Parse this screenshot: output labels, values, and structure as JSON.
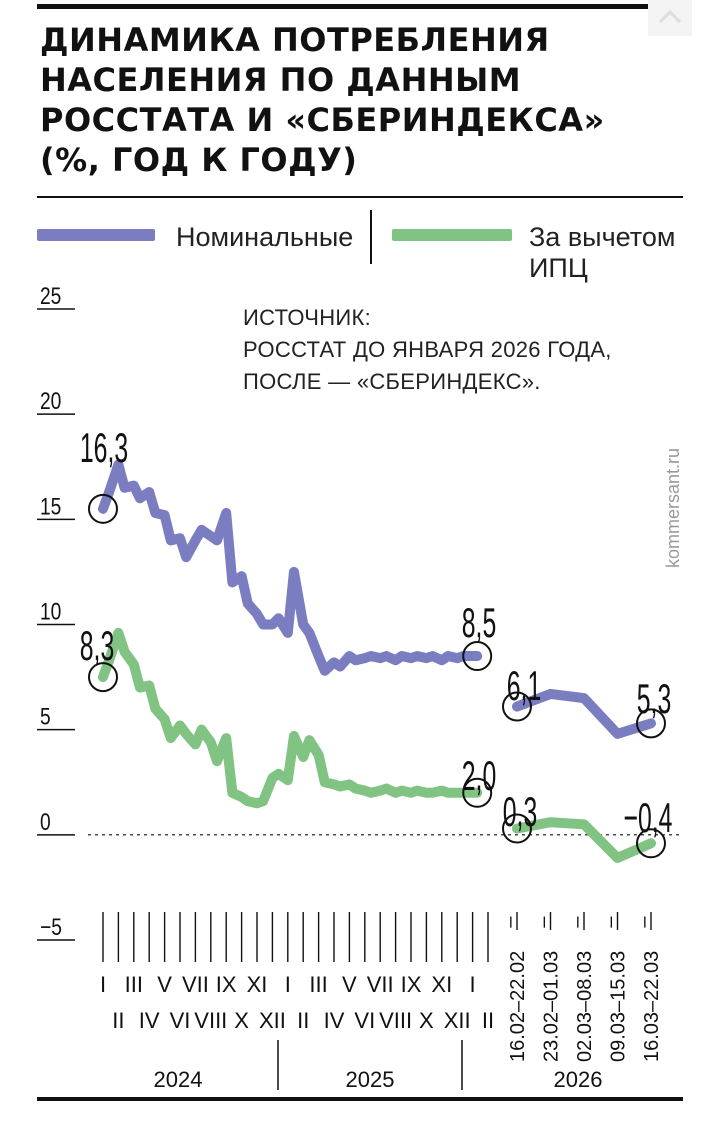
{
  "header": {
    "title_lines": [
      "ДИНАМИКА ПОТРЕБЛЕНИЯ",
      "НАСЕЛЕНИЯ ПО ДАННЫМ",
      "РОССТАТА И «СБЕРИНДЕКСА»",
      "(%, ГОД К ГОДУ)"
    ]
  },
  "legend": {
    "nominal": "Номинальные",
    "real_line1": "За вычетом",
    "real_line2": "ИПЦ"
  },
  "source": {
    "line1": "ИСТОЧНИК:",
    "line2": "РОССТАТ ДО ЯНВАРЯ 2026 ГОДА,",
    "line3": "ПОСЛЕ — «СБЕРИНДЕКС»."
  },
  "watermark": "kommersant.ru",
  "colors": {
    "nominal": "#7a7dbf",
    "real": "#80c383",
    "text": "#111111",
    "watermark": "#9a9a9a"
  },
  "chart_data": {
    "type": "line",
    "title": "ДИНАМИКА ПОТРЕБЛЕНИЯ НАСЕЛЕНИЯ ПО ДАННЫМ РОССТАТА И «СБЕРИНДЕКСА» (%, ГОД К ГОДУ)",
    "ylabel": "%, год к году",
    "ylim": [
      -5,
      25
    ],
    "yticks": [
      "25",
      "20",
      "15",
      "10",
      "5",
      "0",
      "−5"
    ],
    "monthly_ticks_top": [
      "I",
      "III",
      "V",
      "VII",
      "IX",
      "XI",
      "I",
      "III",
      "V",
      "VII",
      "IX",
      "XI",
      "I"
    ],
    "monthly_ticks_bottom": [
      "II",
      "IV",
      "VI",
      "VIII",
      "X",
      "XII",
      "II",
      "IV",
      "VI",
      "VIII",
      "X",
      "XII",
      "II"
    ],
    "years": [
      "2024",
      "2025",
      "2026"
    ],
    "weekly_labels": [
      "16.02–22.02",
      "23.02–01.03",
      "02.03–08.03",
      "09.03–15.03",
      "16.03–22.03"
    ],
    "monthly_series": [
      {
        "name": "Номинальные",
        "x": [
          0,
          0.4,
          1,
          1.4,
          2,
          2.4,
          3,
          3.4,
          4,
          4.4,
          5,
          5.4,
          6,
          6.4,
          7,
          7.4,
          8,
          8.4,
          9,
          9.4,
          10,
          10.4,
          11,
          11.4,
          12,
          12.4,
          13,
          13.4,
          14,
          14.4,
          15,
          15.4,
          16,
          16.4,
          17,
          17.4,
          18,
          18.4,
          19,
          19.4,
          20,
          20.4,
          21,
          21.4,
          22,
          22.4,
          23,
          23.4,
          24,
          24.3
        ],
        "values": [
          15.5,
          16.3,
          17.6,
          16.5,
          16.6,
          16.0,
          16.3,
          15.3,
          15.2,
          14.0,
          14.1,
          13.2,
          14.0,
          14.5,
          14.2,
          14.0,
          15.3,
          12.0,
          12.3,
          11.0,
          10.5,
          10.0,
          10.0,
          10.3,
          9.6,
          12.5,
          10.0,
          9.6,
          8.5,
          7.8,
          8.2,
          8.0,
          8.5,
          8.3,
          8.4,
          8.5,
          8.4,
          8.5,
          8.3,
          8.5,
          8.4,
          8.5,
          8.4,
          8.5,
          8.3,
          8.5,
          8.4,
          8.5,
          8.5,
          8.5
        ],
        "last_label": "8,5"
      },
      {
        "name": "За вычетом ИПЦ",
        "x": [
          0,
          0.4,
          1,
          1.4,
          2,
          2.4,
          3,
          3.4,
          4,
          4.4,
          5,
          5.4,
          6,
          6.4,
          7,
          7.4,
          8,
          8.4,
          9,
          9.4,
          10,
          10.4,
          11,
          11.4,
          12,
          12.4,
          13,
          13.4,
          14,
          14.4,
          15,
          15.4,
          16,
          16.4,
          17,
          17.4,
          18,
          18.4,
          19,
          19.4,
          20,
          20.4,
          21,
          21.4,
          22,
          22.4,
          23,
          23.4,
          24,
          24.3
        ],
        "values": [
          7.5,
          8.3,
          9.6,
          8.7,
          8.1,
          7.0,
          7.1,
          6.0,
          5.5,
          4.6,
          5.2,
          4.8,
          4.3,
          5.0,
          4.4,
          3.5,
          4.6,
          2.0,
          1.8,
          1.6,
          1.5,
          1.6,
          2.7,
          2.9,
          2.6,
          4.7,
          3.7,
          4.5,
          3.8,
          2.5,
          2.4,
          2.3,
          2.4,
          2.2,
          2.1,
          2.0,
          2.1,
          2.2,
          2.0,
          2.1,
          2.0,
          2.1,
          2.0,
          2.0,
          2.1,
          2.0,
          2.0,
          2.0,
          2.0,
          2.0
        ],
        "last_label": "2,0"
      }
    ],
    "weekly_series": [
      {
        "name": "Номинальные",
        "values": [
          6.1,
          6.7,
          6.5,
          4.8,
          5.3
        ],
        "first_label": "6,1",
        "last_label": "5,3"
      },
      {
        "name": "За вычетом ИПЦ",
        "values": [
          0.3,
          0.6,
          0.5,
          -1.1,
          -0.4
        ],
        "first_label": "0,3",
        "last_label": "−0,4"
      }
    ],
    "start_labels": {
      "nominal": "16,3",
      "real": "8,3"
    }
  }
}
